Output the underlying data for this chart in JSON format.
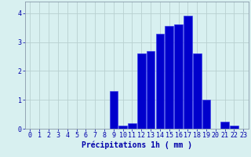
{
  "hours": [
    0,
    1,
    2,
    3,
    4,
    5,
    6,
    7,
    8,
    9,
    10,
    11,
    12,
    13,
    14,
    15,
    16,
    17,
    18,
    19,
    20,
    21,
    22,
    23
  ],
  "values": [
    0.0,
    0.0,
    0.0,
    0.0,
    0.0,
    0.0,
    0.0,
    0.0,
    0.0,
    1.3,
    0.1,
    0.2,
    2.6,
    2.7,
    3.3,
    3.55,
    3.6,
    3.9,
    2.6,
    1.0,
    0.0,
    0.25,
    0.1,
    0.0
  ],
  "bar_color": "#0000cc",
  "bar_edge_color": "#3333ee",
  "background_color": "#d8f0f0",
  "grid_color": "#b8d0d0",
  "text_color": "#0000aa",
  "xlabel": "Précipitations 1h ( mm )",
  "ylim": [
    0,
    4.4
  ],
  "yticks": [
    0,
    1,
    2,
    3,
    4
  ],
  "label_fontsize": 7,
  "tick_fontsize": 6
}
